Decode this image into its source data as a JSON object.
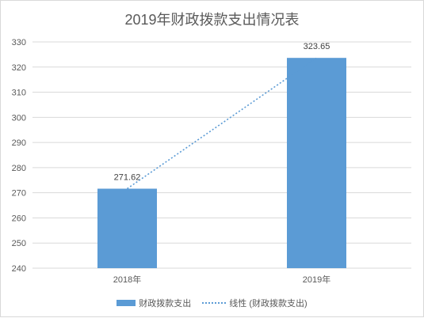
{
  "chart_data": {
    "type": "bar",
    "title": "2019年财政拨款支出情况表",
    "categories": [
      "2018年",
      "2019年"
    ],
    "series": [
      {
        "name": "财政拨款支出",
        "values": [
          271.62,
          323.65
        ],
        "color": "#5b9bd5"
      }
    ],
    "trendline": {
      "name": "线性 (财政拨款支出)",
      "type": "linear",
      "style": "dotted",
      "color": "#5b9bd5"
    },
    "data_labels": [
      "271.62",
      "323.65"
    ],
    "ylim": [
      240,
      330
    ],
    "yticks": [
      240,
      250,
      260,
      270,
      280,
      290,
      300,
      310,
      320,
      330
    ],
    "grid": true,
    "legend_position": "bottom"
  }
}
